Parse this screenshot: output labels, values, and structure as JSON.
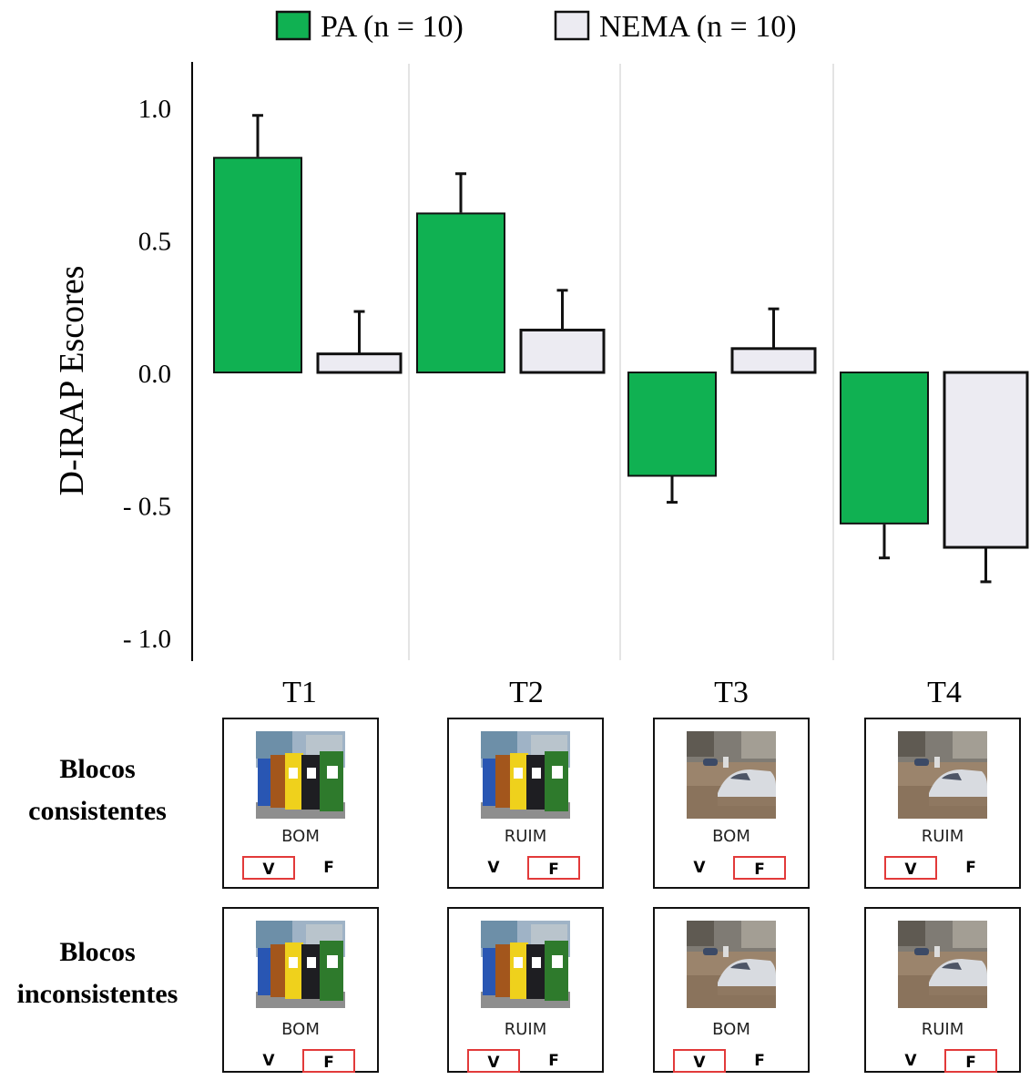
{
  "chart_data": {
    "type": "bar",
    "categories": [
      "T1",
      "T2",
      "T3",
      "T4"
    ],
    "series": [
      {
        "name": "PA (n = 10)",
        "values": [
          0.81,
          0.6,
          -0.39,
          -0.57
        ],
        "errors": [
          0.16,
          0.15,
          0.1,
          0.13
        ],
        "color": "#10b152"
      },
      {
        "name": "NEMA (n = 10)",
        "values": [
          0.07,
          0.16,
          0.09,
          -0.66
        ],
        "errors": [
          0.16,
          0.15,
          0.15,
          0.13
        ],
        "color": "#ecebf2"
      }
    ],
    "ylabel": "D-IRAP Escores",
    "ylim": [
      -1.0,
      1.0
    ],
    "yticks": [
      1.0,
      0.5,
      0.0,
      -0.5,
      -1.0
    ],
    "ytick_labels": [
      "1.0",
      "0.5",
      "0.0",
      "- 0.5",
      "- 1.0"
    ],
    "legend_position": "top-center"
  },
  "rows": {
    "consistent": [
      "Blocos",
      "consistentes"
    ],
    "inconsistent": [
      "Blocos",
      "inconsistentes"
    ]
  },
  "trials": [
    {
      "image": "recycling-bins",
      "consistent": {
        "word": "BOM",
        "v": "V",
        "f": "F",
        "selected": "V"
      },
      "inconsistent": {
        "word": "BOM",
        "v": "V",
        "f": "F",
        "selected": "F"
      }
    },
    {
      "image": "recycling-bins",
      "consistent": {
        "word": "RUIM",
        "v": "V",
        "f": "F",
        "selected": "F"
      },
      "inconsistent": {
        "word": "RUIM",
        "v": "V",
        "f": "F",
        "selected": "V"
      }
    },
    {
      "image": "flooded-street",
      "consistent": {
        "word": "BOM",
        "v": "V",
        "f": "F",
        "selected": "F"
      },
      "inconsistent": {
        "word": "BOM",
        "v": "V",
        "f": "F",
        "selected": "V"
      }
    },
    {
      "image": "flooded-street",
      "consistent": {
        "word": "RUIM",
        "v": "V",
        "f": "F",
        "selected": "V"
      },
      "inconsistent": {
        "word": "RUIM",
        "v": "V",
        "f": "F",
        "selected": "F"
      }
    }
  ]
}
